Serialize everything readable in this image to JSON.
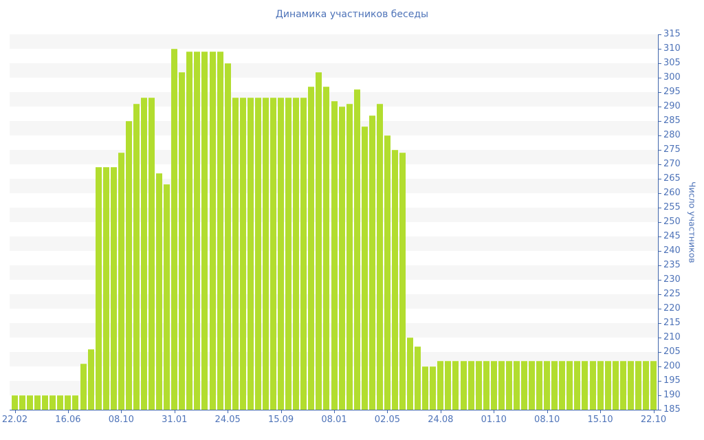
{
  "title": "Динамика участников беседы",
  "chart_data": {
    "type": "bar",
    "title": "Динамика участников беседы",
    "xlabel": "",
    "ylabel": "Число участников",
    "ylim": [
      185,
      315
    ],
    "ytick_step": 5,
    "grid": "horizontal-stripes",
    "legend": "none",
    "bar_color": "#b2dd2f",
    "axis_line_color": "#4066ab",
    "text_color": "#4e73b8",
    "stripe_color": "#f6f6f6",
    "x_tick_labels": [
      "22.02",
      "16.06",
      "08.10",
      "31.01",
      "24.05",
      "15.09",
      "08.01",
      "02.05",
      "24.08",
      "01.10",
      "08.10",
      "15.10",
      "22.10"
    ],
    "x_tick_every_n_bars": 7,
    "values": [
      190,
      190,
      190,
      190,
      190,
      190,
      190,
      190,
      190,
      201,
      206,
      269,
      269,
      269,
      274,
      285,
      291,
      293,
      293,
      267,
      263,
      310,
      302,
      309,
      309,
      309,
      309,
      309,
      305,
      293,
      293,
      293,
      293,
      293,
      293,
      293,
      293,
      293,
      293,
      297,
      302,
      297,
      292,
      290,
      291,
      296,
      283,
      287,
      291,
      280,
      275,
      274,
      210,
      207,
      200,
      200,
      202,
      202,
      202,
      202,
      202,
      202,
      202,
      202,
      202,
      202,
      202,
      202,
      202,
      202,
      202,
      202,
      202,
      202,
      202,
      202,
      202,
      202,
      202,
      202,
      202,
      202,
      202,
      202,
      202
    ]
  }
}
